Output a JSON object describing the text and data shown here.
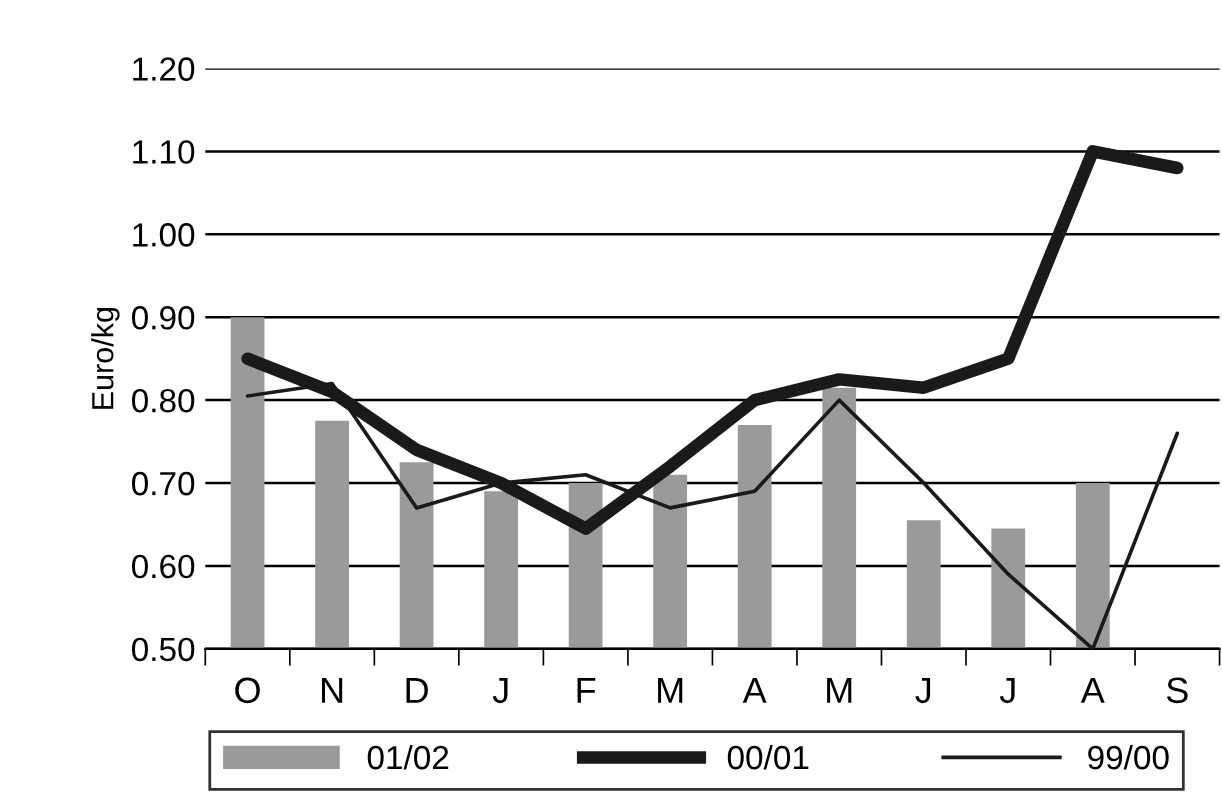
{
  "chart_data": {
    "type": "bar",
    "ylabel": "Euro/kg",
    "categories": [
      "O",
      "N",
      "D",
      "J",
      "F",
      "M",
      "A",
      "M",
      "J",
      "J",
      "A",
      "S"
    ],
    "series": [
      {
        "name": "01/02",
        "color": "#9a9a9a",
        "values": [
          0.9,
          0.775,
          0.725,
          0.69,
          0.7,
          0.71,
          0.77,
          0.815,
          0.655,
          0.645,
          0.7,
          null
        ]
      },
      {
        "name": "00/01",
        "type": "line",
        "color": "#1a1a1a",
        "values": [
          0.85,
          0.81,
          0.74,
          0.7,
          0.645,
          0.72,
          0.8,
          0.825,
          0.815,
          0.85,
          1.1,
          1.08
        ]
      },
      {
        "name": "99/00",
        "type": "line",
        "color": "#1a1a1a",
        "values": [
          0.805,
          0.82,
          0.67,
          0.7,
          0.71,
          0.67,
          0.69,
          0.8,
          0.7,
          0.59,
          0.5,
          0.76
        ]
      }
    ],
    "ylim": [
      0.5,
      1.2
    ],
    "yticks": [
      {
        "value": 0.5,
        "label": "0.50"
      },
      {
        "value": 0.6,
        "label": "0.60"
      },
      {
        "value": 0.7,
        "label": "0.70"
      },
      {
        "value": 0.8,
        "label": "0.80"
      },
      {
        "value": 0.9,
        "label": "0.90"
      },
      {
        "value": 1.0,
        "label": "1.00"
      },
      {
        "value": 1.1,
        "label": "1.10"
      },
      {
        "value": 1.2,
        "label": "1.20"
      }
    ],
    "grid": "y",
    "legend": "bottom"
  }
}
